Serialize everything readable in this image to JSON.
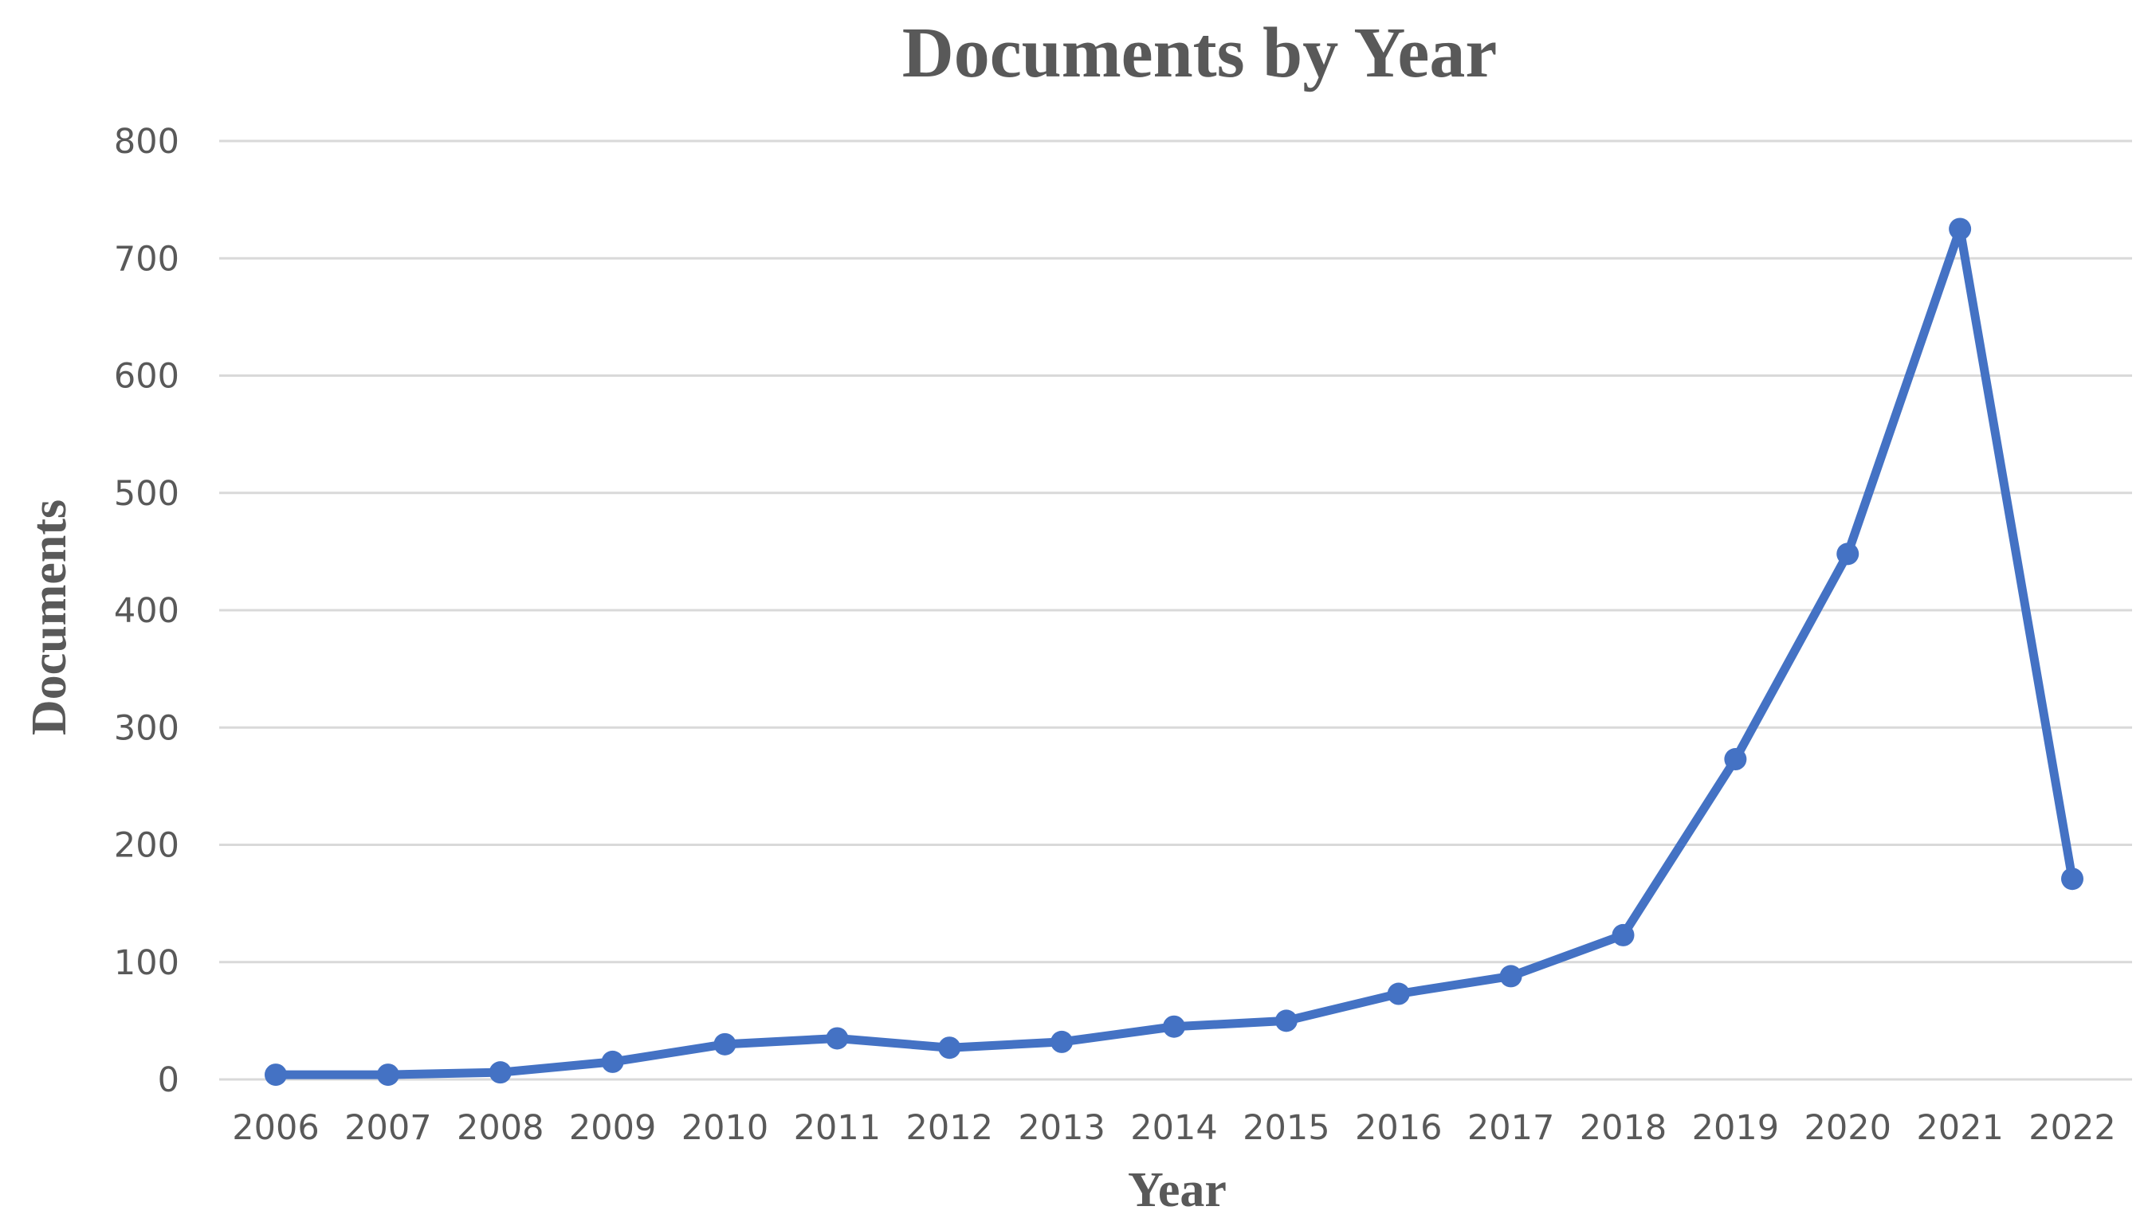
{
  "chart_data": {
    "type": "line",
    "title": "Documents by Year",
    "xlabel": "Year",
    "ylabel": "Documents",
    "categories": [
      "2006",
      "2007",
      "2008",
      "2009",
      "2010",
      "2011",
      "2012",
      "2013",
      "2014",
      "2015",
      "2016",
      "2017",
      "2018",
      "2019",
      "2020",
      "2021",
      "2022"
    ],
    "series": [
      {
        "values": [
          4,
          4,
          6,
          15,
          30,
          35,
          27,
          32,
          45,
          50,
          73,
          88,
          123,
          273,
          448,
          725,
          171
        ]
      }
    ],
    "ylim": [
      0,
      800
    ],
    "yticks": [
      0,
      100,
      200,
      300,
      400,
      500,
      600,
      700,
      800
    ],
    "grid": "horizontal",
    "legend": "none",
    "colors": {
      "series": "#4472C4",
      "gridline": "#D9D9D9",
      "text": "#595959"
    }
  }
}
